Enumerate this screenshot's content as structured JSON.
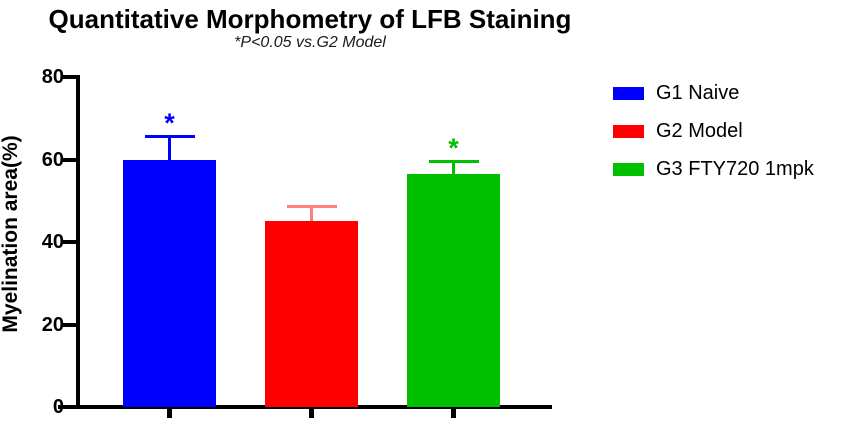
{
  "title": "Quantitative Morphometry of LFB Staining",
  "subtitle": "*P<0.05 vs.G2 Model",
  "ylabel": "Myelination area(%)",
  "chart_data": {
    "type": "bar",
    "title": "Quantitative Morphometry of LFB Staining",
    "subtitle": "*P<0.05 vs.G2 Model",
    "xlabel": "",
    "ylabel": "Myelination area(%)",
    "ylim": [
      0,
      80
    ],
    "yticks": [
      0,
      20,
      40,
      60,
      80
    ],
    "grid": false,
    "legend_position": "right",
    "categories": [
      "G1 Naive",
      "G2 Model",
      "G3 FTY720 1mpk"
    ],
    "values": [
      60,
      45,
      56.5
    ],
    "errors_plus": [
      5.5,
      3.5,
      3
    ],
    "significance": [
      "*",
      "",
      "*"
    ],
    "bar_colors": [
      "#0000ff",
      "#ff0000",
      "#00c000"
    ],
    "error_bar_colors": [
      "#0000ff",
      "#ff8080",
      "#00c000"
    ],
    "significance_note": "*P<0.05 vs.G2 Model"
  },
  "legend": {
    "items": [
      {
        "label": "G1 Naive",
        "color": "#0000ff"
      },
      {
        "label": "G2 Model",
        "color": "#ff0000"
      },
      {
        "label": "G3 FTY720 1mpk",
        "color": "#00c000"
      }
    ]
  }
}
